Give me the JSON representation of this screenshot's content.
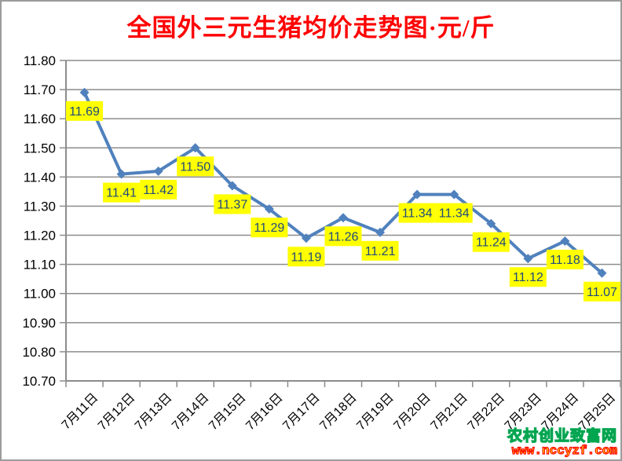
{
  "chart_data": {
    "type": "line",
    "title": "全国外三元生猪均价走势图·元/斤",
    "categories": [
      "7月11日",
      "7月12日",
      "7月13日",
      "7月14日",
      "7月15日",
      "7月16日",
      "7月17日",
      "7月18日",
      "7月19日",
      "7月20日",
      "7月21日",
      "7月22日",
      "7月23日",
      "7月24日",
      "7月25日"
    ],
    "values": [
      11.69,
      11.41,
      11.42,
      11.5,
      11.37,
      11.29,
      11.19,
      11.26,
      11.21,
      11.34,
      11.34,
      11.24,
      11.12,
      11.18,
      11.07
    ],
    "labels": [
      "11.69",
      "11.41",
      "11.42",
      "11.50",
      "11.37",
      "11.29",
      "11.19",
      "11.26",
      "11.21",
      "11.34",
      "11.34",
      "11.24",
      "11.12",
      "11.18",
      "11.07"
    ],
    "xlabel": "",
    "ylabel": "",
    "ylim": [
      10.7,
      11.8
    ],
    "ytick_step": 0.1,
    "ytick_labels": [
      "11.80",
      "11.70",
      "11.60",
      "11.50",
      "11.40",
      "11.30",
      "11.20",
      "11.10",
      "11.00",
      "10.90",
      "10.80",
      "10.70"
    ],
    "grid": true,
    "legend": "none",
    "colors": {
      "title": "#FF0000",
      "line": "#4F81BD",
      "marker": "#4F81BD",
      "label_bg": "#FFFF00",
      "label_text": "#1F497D",
      "gridline": "#8C8C8C",
      "axis": "#8C8C8C",
      "axis_text": "#000000"
    }
  },
  "watermark": {
    "site_name": "农村创业致富网",
    "site_url": "www.nccyzf.com",
    "fill_color": "#FFFF00",
    "name_outline_color": "#00A550",
    "url_outline_color": "#FF0000"
  }
}
